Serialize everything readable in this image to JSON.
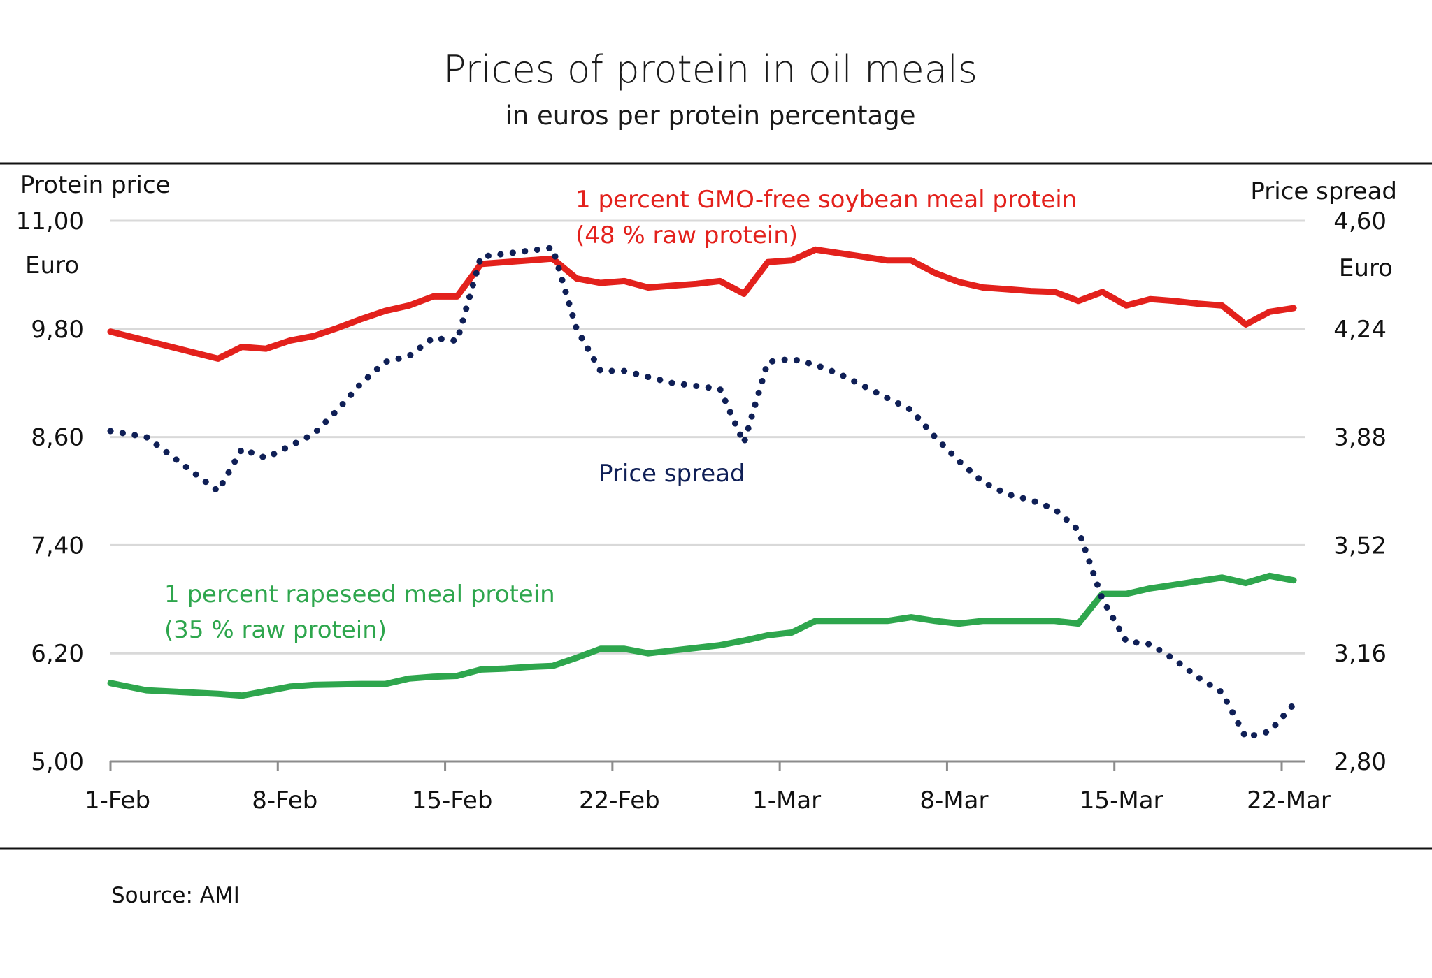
{
  "chart_data": {
    "type": "line",
    "title": "Prices of protein in oil meals",
    "subtitle": "in euros per protein percentage",
    "source": "Source: AMI",
    "x_unit": "days since 1-Feb",
    "x_range": [
      0,
      49
    ],
    "x_ticks": [
      {
        "day": 0,
        "label": "1-Feb"
      },
      {
        "day": 7,
        "label": "8-Feb"
      },
      {
        "day": 14,
        "label": "15-Feb"
      },
      {
        "day": 21,
        "label": "22-Feb"
      },
      {
        "day": 28,
        "label": "1-Mar"
      },
      {
        "day": 35,
        "label": "8-Mar"
      },
      {
        "day": 42,
        "label": "15-Mar"
      },
      {
        "day": 49,
        "label": "22-Mar"
      }
    ],
    "y_left": {
      "title": "Protein price",
      "unit": "Euro",
      "range": [
        5.0,
        11.0
      ],
      "ticks": [
        "11,00",
        "9,80",
        "8,60",
        "7,40",
        "6,20",
        "5,00"
      ],
      "tick_values": [
        11.0,
        9.8,
        8.6,
        7.4,
        6.2,
        5.0
      ]
    },
    "y_right": {
      "title": "Price spread",
      "unit": "Euro",
      "range": [
        2.8,
        4.6
      ],
      "ticks": [
        "4,60",
        "4,24",
        "3,88",
        "3,52",
        "3,16",
        "2,80"
      ],
      "tick_values": [
        4.6,
        4.24,
        3.88,
        3.52,
        3.16,
        2.8
      ]
    },
    "grid": true,
    "legend": "inline annotations",
    "days": [
      0,
      1.5,
      4.5,
      5.5,
      6.5,
      7.5,
      8.5,
      9.5,
      10.5,
      11.5,
      12.5,
      13.5,
      14.5,
      15.5,
      16.5,
      17.5,
      18.5,
      19.5,
      20.5,
      21.5,
      22.5,
      23.5,
      24.5,
      25.5,
      26.5,
      27.5,
      28.5,
      29.5,
      30.5,
      31.5,
      32.5,
      33.5,
      34.5,
      35.5,
      36.5,
      37.5,
      38.5,
      39.5,
      40.5,
      41.5,
      42.5,
      43.5,
      44.5,
      45.5,
      46.5,
      47.5,
      48.5,
      49.5
    ],
    "series": [
      {
        "name": "1 percent GMO-free soybean meal protein (48 % raw protein)",
        "label_lines": [
          "1 percent GMO-free  soybean meal protein",
          "(48 % raw protein)"
        ],
        "axis": "left",
        "style": "solid",
        "color": "#e3211c",
        "values": [
          9.77,
          9.67,
          9.47,
          9.6,
          9.58,
          9.67,
          9.72,
          9.81,
          9.91,
          10.0,
          10.06,
          10.16,
          10.16,
          10.52,
          10.54,
          10.56,
          10.58,
          10.36,
          10.31,
          10.33,
          10.26,
          10.28,
          10.3,
          10.33,
          10.19,
          10.54,
          10.56,
          10.68,
          10.64,
          10.6,
          10.56,
          10.56,
          10.42,
          10.32,
          10.26,
          10.24,
          10.22,
          10.21,
          10.11,
          10.21,
          10.06,
          10.13,
          10.11,
          10.08,
          10.06,
          9.85,
          9.99,
          10.03
        ]
      },
      {
        "name": "1 percent rapeseed meal protein (35 % raw protein)",
        "label_lines": [
          "1 percent rapeseed  meal protein",
          "(35 % raw protein)"
        ],
        "axis": "left",
        "style": "solid",
        "color": "#2ea64d",
        "values": [
          5.87,
          5.79,
          5.75,
          5.73,
          5.78,
          5.83,
          5.85,
          5.855,
          5.86,
          5.86,
          5.92,
          5.94,
          5.95,
          6.02,
          6.03,
          6.05,
          6.06,
          6.15,
          6.25,
          6.25,
          6.2,
          6.23,
          6.26,
          6.29,
          6.34,
          6.4,
          6.43,
          6.56,
          6.56,
          6.56,
          6.56,
          6.6,
          6.56,
          6.53,
          6.56,
          6.56,
          6.56,
          6.56,
          6.53,
          6.86,
          6.86,
          6.92,
          6.96,
          7.0,
          7.04,
          6.98,
          7.06,
          7.01
        ]
      },
      {
        "name": "Price spread",
        "label_lines": [
          "Price spread"
        ],
        "axis": "right",
        "style": "dotted",
        "color": "#0f1f56",
        "values": [
          3.9,
          3.88,
          3.7,
          3.84,
          3.81,
          3.85,
          3.89,
          3.97,
          4.06,
          4.13,
          4.15,
          4.21,
          4.2,
          4.48,
          4.49,
          4.5,
          4.51,
          4.24,
          4.1,
          4.1,
          4.08,
          4.06,
          4.05,
          4.04,
          3.86,
          4.13,
          4.14,
          4.12,
          4.09,
          4.05,
          4.01,
          3.97,
          3.88,
          3.8,
          3.73,
          3.69,
          3.67,
          3.64,
          3.57,
          3.34,
          3.2,
          3.19,
          3.14,
          3.08,
          3.03,
          2.88,
          2.9,
          2.99
        ]
      }
    ]
  }
}
